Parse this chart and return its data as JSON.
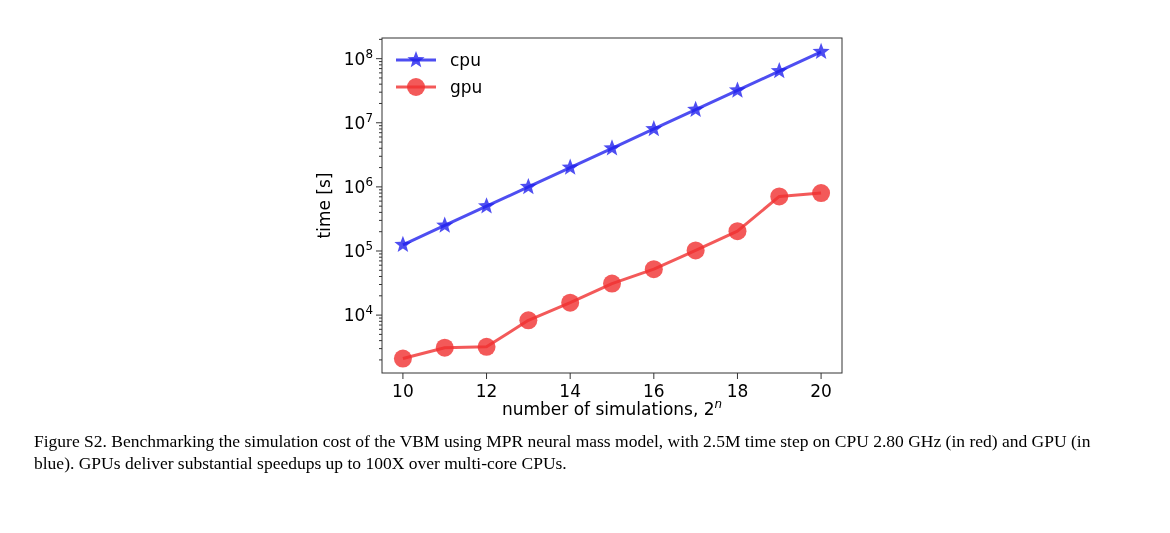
{
  "chart_data": {
    "type": "line",
    "xlabel": "number of simulations, 2$^{n}$",
    "ylabel": "time [s]",
    "x": [
      10,
      11,
      12,
      13,
      14,
      15,
      16,
      17,
      18,
      19,
      20
    ],
    "xlim": [
      9.5,
      20.5
    ],
    "xticks": [
      10,
      12,
      14,
      16,
      18,
      20
    ],
    "ylim": [
      1250,
      210000000
    ],
    "yticks": [
      {
        "value": 10000,
        "label": "10$^{4}$"
      },
      {
        "value": 100000,
        "label": "10$^{5}$"
      },
      {
        "value": 1000000,
        "label": "10$^{6}$"
      },
      {
        "value": 10000000,
        "label": "10$^{7}$"
      },
      {
        "value": 100000000,
        "label": "10$^{8}$"
      }
    ],
    "log": true,
    "grid": false,
    "legend": "top left",
    "line_style": "solid",
    "series": [
      {
        "name": "cpu",
        "color": "#2222ee",
        "marker": "star",
        "values": [
          125000,
          250000,
          500000,
          1000000,
          2000000,
          4000000,
          8000000,
          16000000,
          32000000,
          64000000,
          128000000
        ]
      },
      {
        "name": "gpu",
        "color": "#f03030",
        "marker": "circle",
        "values": [
          2100,
          3100,
          3200,
          8300,
          15600,
          31000,
          52000,
          102000,
          204000,
          710000,
          800000
        ]
      }
    ],
    "annotations": [
      "Figure S2. Benchmarking the simulation cost of the VBM using MPR neural mass model, with 2.5M time step on CPU 2.80 GHz (in red) and GPU (in blue). GPUs deliver substantial speedups up to 100X over multi-core CPUs."
    ]
  }
}
